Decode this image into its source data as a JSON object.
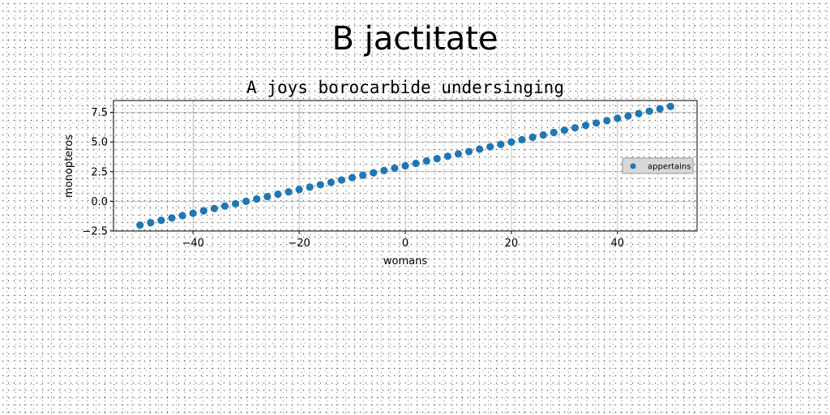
{
  "suptitle": "B jactitate",
  "chart_data": {
    "type": "scatter",
    "title": "A joys borocarbide undersinging",
    "xlabel": "womans",
    "ylabel": "monopteros",
    "xlim": [
      -55,
      55
    ],
    "ylim": [
      -2.5,
      8.5
    ],
    "xticks": [
      -40,
      -20,
      0,
      20,
      40
    ],
    "xtick_labels": [
      "−40",
      "−20",
      "0",
      "20",
      "40"
    ],
    "yticks": [
      -2.5,
      0.0,
      2.5,
      5.0,
      7.5
    ],
    "ytick_labels": [
      "−2.5",
      "0.0",
      "2.5",
      "5.0",
      "7.5"
    ],
    "grid": true,
    "legend_position": "center-right",
    "series": [
      {
        "name": "appertains",
        "color": "#1f77b4",
        "marker": "circle",
        "x": [
          -50,
          -48,
          -46,
          -44,
          -42,
          -40,
          -38,
          -36,
          -34,
          -32,
          -30,
          -28,
          -26,
          -24,
          -22,
          -20,
          -18,
          -16,
          -14,
          -12,
          -10,
          -8,
          -6,
          -4,
          -2,
          0,
          2,
          4,
          6,
          8,
          10,
          12,
          14,
          16,
          18,
          20,
          22,
          24,
          26,
          28,
          30,
          32,
          34,
          36,
          38,
          40,
          42,
          44,
          46,
          48,
          50
        ],
        "y": [
          -2.0,
          -1.8,
          -1.6,
          -1.4,
          -1.2,
          -1.0,
          -0.8,
          -0.6,
          -0.4,
          -0.2,
          0.0,
          0.2,
          0.4,
          0.6,
          0.8,
          1.0,
          1.2,
          1.4,
          1.6,
          1.8,
          2.0,
          2.2,
          2.4,
          2.6,
          2.8,
          3.0,
          3.2,
          3.4,
          3.6,
          3.8,
          4.0,
          4.2,
          4.4,
          4.6,
          4.8,
          5.0,
          5.2,
          5.4,
          5.6,
          5.8,
          6.0,
          6.2,
          6.4,
          6.6,
          6.8,
          7.0,
          7.2,
          7.4,
          7.6,
          7.8,
          8.0
        ]
      }
    ]
  }
}
